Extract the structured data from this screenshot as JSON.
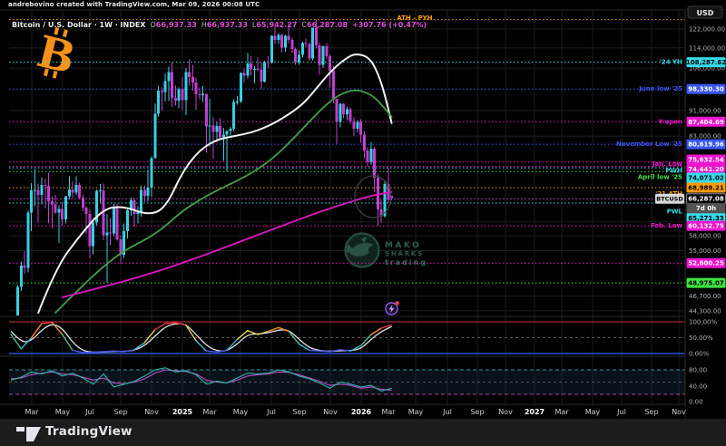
{
  "attribution": "andrebovino created with TradingView.com, Mar 09, 2026 00:08 UTC",
  "legend": {
    "title": "Bitcoin / U.S. Dollar · 1W · INDEX",
    "ohlc": [
      {
        "k": "O",
        "v": "66,937.33"
      },
      {
        "k": "H",
        "v": "66,937.33"
      },
      {
        "k": "L",
        "v": "65,942.27"
      },
      {
        "k": "C",
        "v": "66,287.08"
      }
    ],
    "change": "+307.76 (+0.47%)"
  },
  "ath_label": "ATH - PYH",
  "symbol_chip": "BTCUSD",
  "countdown": "7d 0h",
  "last_price": {
    "price_text": "66,287.08",
    "price": 66287.08
  },
  "price_scale": {
    "currency": "USD",
    "ticks": [
      "122,000.00",
      "114,000.00",
      "106,000.00",
      "91,000.00",
      "83,000.00",
      "61,000.00",
      "58,000.00",
      "55,000.00",
      "46,700.00",
      "44,300.00"
    ],
    "tick_values": [
      122000,
      114000,
      106000,
      91000,
      83000,
      61000,
      58000,
      55000,
      46700,
      44300
    ],
    "pane2_ticks": [
      "100.00%",
      "50.00%",
      "0.00%"
    ],
    "pane2_tick_values": [
      100,
      50,
      0
    ],
    "pane3_ticks": [
      "80.00",
      "40.00",
      "0.00"
    ],
    "pane3_tick_values": [
      80,
      40,
      0
    ]
  },
  "time_axis": {
    "labels": [
      "Mar",
      "May",
      "Jul",
      "Sep",
      "Nov",
      "2025",
      "Mar",
      "May",
      "Jul",
      "Sep",
      "Nov",
      "2026",
      "Mar",
      "May",
      "Jul",
      "Sep",
      "Nov",
      "2027",
      "Mar",
      "May",
      "Jul",
      "Sep",
      "Nov"
    ],
    "year_indices": [
      5,
      11,
      17
    ]
  },
  "levels": [
    {
      "label": "'24 YH",
      "price_text": "108,287.62",
      "price": 108287.62,
      "color": "cyan"
    },
    {
      "label": "June low '25",
      "price_text": "98,330.30",
      "price": 98330.3,
      "color": "blue"
    },
    {
      "label": "Y-open",
      "price_text": "87,404.69",
      "price": 87404.69,
      "color": "magenta"
    },
    {
      "label": "November Low '25",
      "price_text": "80,619.96",
      "price": 80619.96,
      "color": "blue"
    },
    {
      "label": "",
      "price_text": "75,632.54",
      "price": 75632.54,
      "color": "magenta"
    },
    {
      "label": "Jan. Low",
      "price_text": "74,441.20",
      "price": 74441.2,
      "color": "magenta"
    },
    {
      "label": "PWH",
      "price_text": "74,071.02",
      "price": 74071.02,
      "color": "cyan"
    },
    {
      "label": "April low '25",
      "price_text": "",
      "price": 73100,
      "color": "green"
    },
    {
      "label": "'21 ATH",
      "price_text": "68,989.21",
      "price": 68989.21,
      "color": "orange"
    },
    {
      "label": "PWL",
      "price_text": "65,271.33",
      "price": 65271.33,
      "color": "cyan"
    },
    {
      "label": "Feb. Low",
      "price_text": "60,132.75",
      "price": 60132.75,
      "color": "magenta"
    },
    {
      "label": "",
      "price_text": "52,600.25",
      "price": 52600.25,
      "color": "magenta"
    },
    {
      "label": "",
      "price_text": "48,975.07",
      "price": 48975.07,
      "color": "green"
    }
  ],
  "watermark": {
    "line1": "MAKO",
    "line2": "SHARKS",
    "line3": "trading"
  },
  "footer": {
    "brand": "TradingView"
  },
  "colors": {
    "background": "#000000",
    "grid": "#1d1d1d",
    "up_candle": "#35d0e0",
    "down_candle": "#c13fd1",
    "ma_white": "#f2f2f2",
    "ma_green": "#43a047",
    "ma_magenta": "#e015c2",
    "cyan": "#34dbe8",
    "blue": "#3a57f2",
    "magenta": "#ef13cf",
    "orange": "#ff9d00",
    "green": "#3fe43f",
    "stoch_100_line": "#a32630",
    "stoch_0_line": "#2962ff",
    "rsi_teal": "#2bb8a8",
    "rsi_magenta": "#c04ad0",
    "btc_logo": "#f7931a"
  },
  "chart_data": {
    "type": "candlestick",
    "symbol": "Bitcoin / U.S. Dollar INDEX (BTCUSD)",
    "interval": "1W",
    "ylabel": "USD",
    "scale": "log",
    "ath_line_price": 126199,
    "candles_ohlc": [
      [
        41600,
        42800,
        38500,
        42000
      ],
      [
        42000,
        43400,
        41300,
        43000
      ],
      [
        43000,
        48600,
        42200,
        48300
      ],
      [
        48300,
        52900,
        47600,
        52100
      ],
      [
        52100,
        54900,
        50600,
        51700
      ],
      [
        51700,
        63600,
        50900,
        63100
      ],
      [
        63100,
        70100,
        59000,
        68300
      ],
      [
        68300,
        73800,
        64500,
        68400
      ],
      [
        68400,
        70000,
        60800,
        67200
      ],
      [
        67200,
        71600,
        64900,
        69600
      ],
      [
        69600,
        71300,
        64000,
        69400
      ],
      [
        69400,
        72800,
        60700,
        65700
      ],
      [
        65700,
        66900,
        59600,
        64900
      ],
      [
        64900,
        67200,
        62800,
        63100
      ],
      [
        63100,
        64700,
        56500,
        63900
      ],
      [
        63900,
        65500,
        60200,
        61500
      ],
      [
        61500,
        67000,
        60600,
        66900
      ],
      [
        66900,
        71900,
        66100,
        68500
      ],
      [
        68500,
        70600,
        66400,
        67800
      ],
      [
        67800,
        71900,
        67100,
        69600
      ],
      [
        69600,
        70200,
        66100,
        66600
      ],
      [
        66600,
        67300,
        63400,
        64200
      ],
      [
        64200,
        64500,
        58400,
        62800
      ],
      [
        62800,
        63800,
        53500,
        55900
      ],
      [
        55900,
        61400,
        54300,
        60800
      ],
      [
        60800,
        68500,
        60300,
        68200
      ],
      [
        68200,
        69900,
        65400,
        68300
      ],
      [
        68300,
        70000,
        57100,
        58100
      ],
      [
        58100,
        62700,
        49100,
        58700
      ],
      [
        58700,
        61800,
        56100,
        58500
      ],
      [
        58500,
        65100,
        57900,
        64100
      ],
      [
        64100,
        65200,
        57000,
        57300
      ],
      [
        57300,
        58100,
        52500,
        54200
      ],
      [
        54200,
        60600,
        53600,
        59000
      ],
      [
        59000,
        63900,
        57500,
        63600
      ],
      [
        63600,
        66500,
        62400,
        65900
      ],
      [
        65900,
        66500,
        60000,
        62800
      ],
      [
        62800,
        64500,
        60600,
        63200
      ],
      [
        63200,
        69400,
        62100,
        68400
      ],
      [
        68400,
        69500,
        65500,
        67000
      ],
      [
        67000,
        73600,
        65600,
        69000
      ],
      [
        69000,
        77200,
        66800,
        76700
      ],
      [
        76700,
        93400,
        76500,
        89900
      ],
      [
        89900,
        99600,
        89100,
        97700
      ],
      [
        97700,
        98900,
        90800,
        97300
      ],
      [
        97300,
        104000,
        94000,
        101200
      ],
      [
        101200,
        106500,
        94200,
        104500
      ],
      [
        104500,
        108287.62,
        92200,
        95200
      ],
      [
        95200,
        99500,
        92700,
        94300
      ],
      [
        94300,
        98800,
        91800,
        98200
      ],
      [
        98200,
        102700,
        91200,
        94500
      ],
      [
        94500,
        106000,
        89500,
        104500
      ],
      [
        104500,
        109400,
        99500,
        102600
      ],
      [
        102600,
        107200,
        97800,
        100600
      ],
      [
        100600,
        102500,
        91300,
        96500
      ],
      [
        96500,
        98900,
        94800,
        96100
      ],
      [
        96100,
        99400,
        93900,
        96600
      ],
      [
        96600,
        96700,
        78200,
        86000
      ],
      [
        86000,
        95000,
        80000,
        86200
      ],
      [
        86200,
        88800,
        76600,
        84300
      ],
      [
        84300,
        87400,
        81300,
        86100
      ],
      [
        86100,
        88500,
        81900,
        82600
      ],
      [
        82600,
        85500,
        76000,
        83500
      ],
      [
        83500,
        84700,
        73100,
        84500
      ],
      [
        84500,
        86000,
        83000,
        85200
      ],
      [
        85200,
        94700,
        84500,
        93800
      ],
      [
        93800,
        95900,
        92900,
        94000
      ],
      [
        94000,
        104300,
        93600,
        104100
      ],
      [
        104100,
        105800,
        100700,
        103100
      ],
      [
        103100,
        111900,
        102100,
        107800
      ],
      [
        107800,
        110700,
        103100,
        105600
      ],
      [
        105600,
        106800,
        100400,
        105700
      ],
      [
        105700,
        110300,
        104900,
        105500
      ],
      [
        105500,
        108100,
        98330.3,
        101000
      ],
      [
        101000,
        108800,
        100600,
        108300
      ],
      [
        108300,
        110600,
        105900,
        108200
      ],
      [
        108200,
        119300,
        107800,
        119100
      ],
      [
        119100,
        123200,
        115700,
        117300
      ],
      [
        117300,
        120200,
        115600,
        119400
      ],
      [
        119400,
        120100,
        112000,
        114200
      ],
      [
        114200,
        119500,
        112400,
        119100
      ],
      [
        119100,
        124500,
        115800,
        117400
      ],
      [
        117400,
        118300,
        111900,
        113500
      ],
      [
        113500,
        114100,
        107300,
        108200
      ],
      [
        108200,
        113000,
        107200,
        111200
      ],
      [
        111200,
        116500,
        110100,
        115900
      ],
      [
        115900,
        117900,
        114300,
        115700
      ],
      [
        115700,
        116400,
        108600,
        109700
      ],
      [
        109700,
        122600,
        109000,
        122500
      ],
      [
        122500,
        126199,
        113700,
        115000
      ],
      [
        115000,
        116100,
        103500,
        107300
      ],
      [
        107300,
        114900,
        106000,
        114600
      ],
      [
        114600,
        116000,
        109600,
        110600
      ],
      [
        110600,
        111400,
        98900,
        105100
      ],
      [
        105100,
        106700,
        93400,
        94900
      ],
      [
        94900,
        95000,
        80619.96,
        87300
      ],
      [
        87300,
        93600,
        85700,
        93200
      ],
      [
        93200,
        93400,
        88700,
        89800
      ],
      [
        89800,
        92400,
        87900,
        91500
      ],
      [
        91500,
        92000,
        86800,
        87600
      ],
      [
        87600,
        88900,
        83000,
        85200
      ],
      [
        85200,
        88000,
        84100,
        87404.69
      ],
      [
        87404.69,
        88200,
        81000,
        83500
      ],
      [
        83500,
        84600,
        76500,
        78900
      ],
      [
        78900,
        79800,
        74441.2,
        75632.54
      ],
      [
        75632.54,
        81200,
        75000,
        79300
      ],
      [
        79300,
        79900,
        68000,
        71500
      ],
      [
        71500,
        72400,
        60132.75,
        63800
      ],
      [
        63800,
        66000,
        60800,
        62200
      ],
      [
        62200,
        70500,
        61900,
        69900
      ],
      [
        69900,
        74071.02,
        65271.33,
        65979.32
      ],
      [
        66937.33,
        66937.33,
        65942.27,
        66287.08
      ]
    ],
    "moving_averages": [
      {
        "name": "white-ma",
        "i": [
          8,
          13,
          20,
          27,
          33,
          40,
          45,
          50,
          55,
          60,
          65,
          70,
          75,
          80,
          85,
          88,
          92,
          95,
          98,
          100,
          103,
          105,
          107,
          109,
          111
        ],
        "price": [
          44000,
          51500,
          58000,
          64000,
          64500,
          62500,
          64000,
          73000,
          79000,
          82000,
          83000,
          84000,
          86000,
          89000,
          93000,
          97000,
          103000,
          107000,
          110000,
          111500,
          111000,
          109000,
          104000,
          96500,
          87000
        ]
      },
      {
        "name": "green-ma",
        "i": [
          13,
          20,
          27,
          33,
          40,
          45,
          50,
          57,
          63,
          70,
          77,
          84,
          90,
          94,
          97,
          100,
          103,
          106,
          108,
          111
        ],
        "price": [
          44000,
          48000,
          52000,
          55000,
          57500,
          60000,
          63500,
          67000,
          69500,
          72500,
          77000,
          84000,
          91000,
          95000,
          97000,
          98000,
          97500,
          95500,
          93000,
          89000
        ]
      },
      {
        "name": "magenta-ma",
        "i": [
          15,
          29,
          40,
          50,
          63,
          77,
          90,
          103,
          108,
          111
        ],
        "price": [
          46500,
          48600,
          50500,
          52600,
          55800,
          59600,
          63300,
          66600,
          67500,
          67900
        ]
      }
    ],
    "oscillator_stochastic": {
      "sample_step": 3,
      "range": [
        0,
        100
      ],
      "levels": [
        100,
        50,
        0
      ],
      "k": [
        60,
        15,
        50,
        95,
        98,
        60,
        10,
        3,
        4,
        6,
        8,
        6,
        12,
        35,
        75,
        95,
        97,
        90,
        40,
        8,
        5,
        10,
        45,
        72,
        60,
        70,
        82,
        70,
        30,
        10,
        8,
        6,
        12,
        8,
        25,
        60,
        80,
        90
      ],
      "d": [
        70,
        35,
        40,
        75,
        95,
        80,
        35,
        8,
        4,
        5,
        7,
        7,
        10,
        25,
        55,
        85,
        95,
        93,
        60,
        25,
        8,
        8,
        30,
        60,
        62,
        65,
        75,
        75,
        45,
        18,
        9,
        7,
        9,
        9,
        15,
        45,
        70,
        85
      ]
    },
    "oscillator_rsi": {
      "sample_step": 3,
      "range": [
        0,
        100
      ],
      "levels": [
        80,
        50,
        20
      ],
      "teal": [
        55,
        62,
        75,
        70,
        78,
        65,
        72,
        60,
        45,
        70,
        38,
        45,
        52,
        65,
        80,
        85,
        75,
        78,
        68,
        45,
        52,
        48,
        60,
        72,
        70,
        72,
        80,
        75,
        65,
        58,
        48,
        35,
        50,
        45,
        38,
        42,
        28,
        35
      ],
      "magenta": [
        58,
        60,
        68,
        72,
        75,
        70,
        68,
        62,
        55,
        60,
        48,
        46,
        50,
        58,
        72,
        80,
        78,
        76,
        70,
        55,
        50,
        48,
        55,
        65,
        68,
        70,
        75,
        74,
        68,
        60,
        52,
        42,
        45,
        42,
        35,
        38,
        32,
        30
      ]
    }
  }
}
